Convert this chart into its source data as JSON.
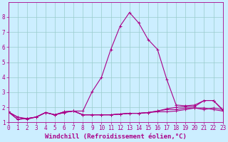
{
  "xlabel": "Windchill (Refroidissement éolien,°C)",
  "background_color": "#cceeff",
  "grid_color": "#99cccc",
  "line_color": "#aa0088",
  "x": [
    0,
    1,
    2,
    3,
    4,
    5,
    6,
    7,
    8,
    9,
    10,
    11,
    12,
    13,
    14,
    15,
    16,
    17,
    18,
    19,
    20,
    21,
    22,
    23
  ],
  "series": [
    [
      1.7,
      1.35,
      1.25,
      1.35,
      1.65,
      1.5,
      1.65,
      1.75,
      1.5,
      1.5,
      1.5,
      1.5,
      1.55,
      1.6,
      1.6,
      1.65,
      1.7,
      1.7,
      1.75,
      1.85,
      1.95,
      1.95,
      1.85,
      1.75
    ],
    [
      1.7,
      1.2,
      1.25,
      1.35,
      1.65,
      1.5,
      1.7,
      1.75,
      1.5,
      1.5,
      1.5,
      1.5,
      1.55,
      1.6,
      1.6,
      1.65,
      1.75,
      1.85,
      1.85,
      1.95,
      1.95,
      1.85,
      1.95,
      1.85
    ],
    [
      1.7,
      1.2,
      1.25,
      1.35,
      1.65,
      1.5,
      1.7,
      1.75,
      1.5,
      1.5,
      1.5,
      1.5,
      1.55,
      1.6,
      1.6,
      1.65,
      1.75,
      1.9,
      2.0,
      2.05,
      2.05,
      2.45,
      2.45,
      1.85
    ],
    [
      1.7,
      1.35,
      1.2,
      1.35,
      1.65,
      1.5,
      1.65,
      1.75,
      1.75,
      3.05,
      4.0,
      5.85,
      7.4,
      8.3,
      7.6,
      6.5,
      5.85,
      3.85,
      2.15,
      2.1,
      2.15,
      2.45,
      2.45,
      1.8
    ]
  ],
  "ylim": [
    1.0,
    9.0
  ],
  "xlim": [
    0,
    23
  ],
  "yticks": [
    1,
    2,
    3,
    4,
    5,
    6,
    7,
    8
  ],
  "xticks": [
    0,
    1,
    2,
    3,
    4,
    5,
    6,
    7,
    8,
    9,
    10,
    11,
    12,
    13,
    14,
    15,
    16,
    17,
    18,
    19,
    20,
    21,
    22,
    23
  ],
  "marker": "+",
  "markersize": 3,
  "linewidth": 0.8,
  "xlabel_fontsize": 6.5,
  "tick_fontsize": 5.5
}
